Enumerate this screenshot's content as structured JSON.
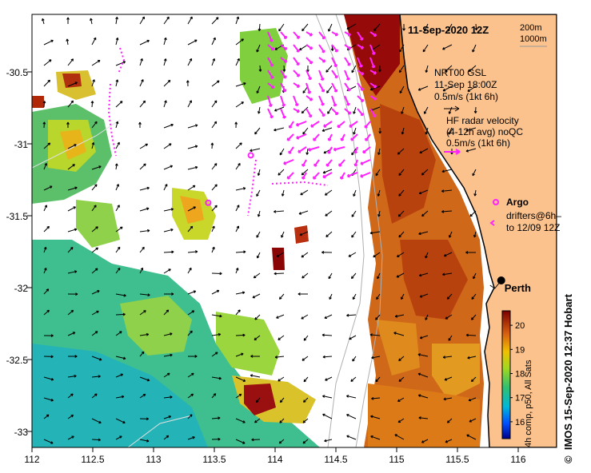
{
  "map": {
    "date_label": "11-Sep-2020 12Z",
    "depth_contours": [
      "200m",
      "1000m"
    ],
    "x_ticks": [
      "112",
      "112.5",
      "113",
      "113.5",
      "114",
      "114.5",
      "115",
      "115.5",
      "116"
    ],
    "y_ticks": [
      "-30.5",
      "-31",
      "-31.5",
      "-32",
      "-32.5",
      "-33"
    ],
    "lon_range": [
      112,
      116.3
    ],
    "lat_range": [
      -33.1,
      -30.1
    ]
  },
  "legend": {
    "model_line1": "NRT00 GSL",
    "model_line2": "11-Sep 18:00Z",
    "model_scale": "0.5m/s (1kt 6h)",
    "radar_line1": "HF radar velocity",
    "radar_line2": "(4-12h avg) noQC",
    "radar_scale": "0.5m/s (1kt 6h)",
    "argo_label": "Argo",
    "drifter_line1": "drifters@6h–",
    "drifter_line2": "to 12/09 12Z",
    "radar_color": "#ff22ff",
    "argo_color": "#ff22ff"
  },
  "city": {
    "name": "Perth",
    "lon": 115.86,
    "lat": -31.95
  },
  "argo_floats": [
    {
      "lon": 113.8,
      "lat": -31.08
    },
    {
      "lon": 113.45,
      "lat": -31.41
    }
  ],
  "colorbar": {
    "ticks": [
      "20",
      "19",
      "18",
      "17",
      "16"
    ],
    "range": [
      15.3,
      20.6
    ],
    "label": "4h comp, p50, All Sats"
  },
  "credit": "IMOS 15-Sep-2020 12:37 Hobart",
  "copyright_symbol": "©"
}
